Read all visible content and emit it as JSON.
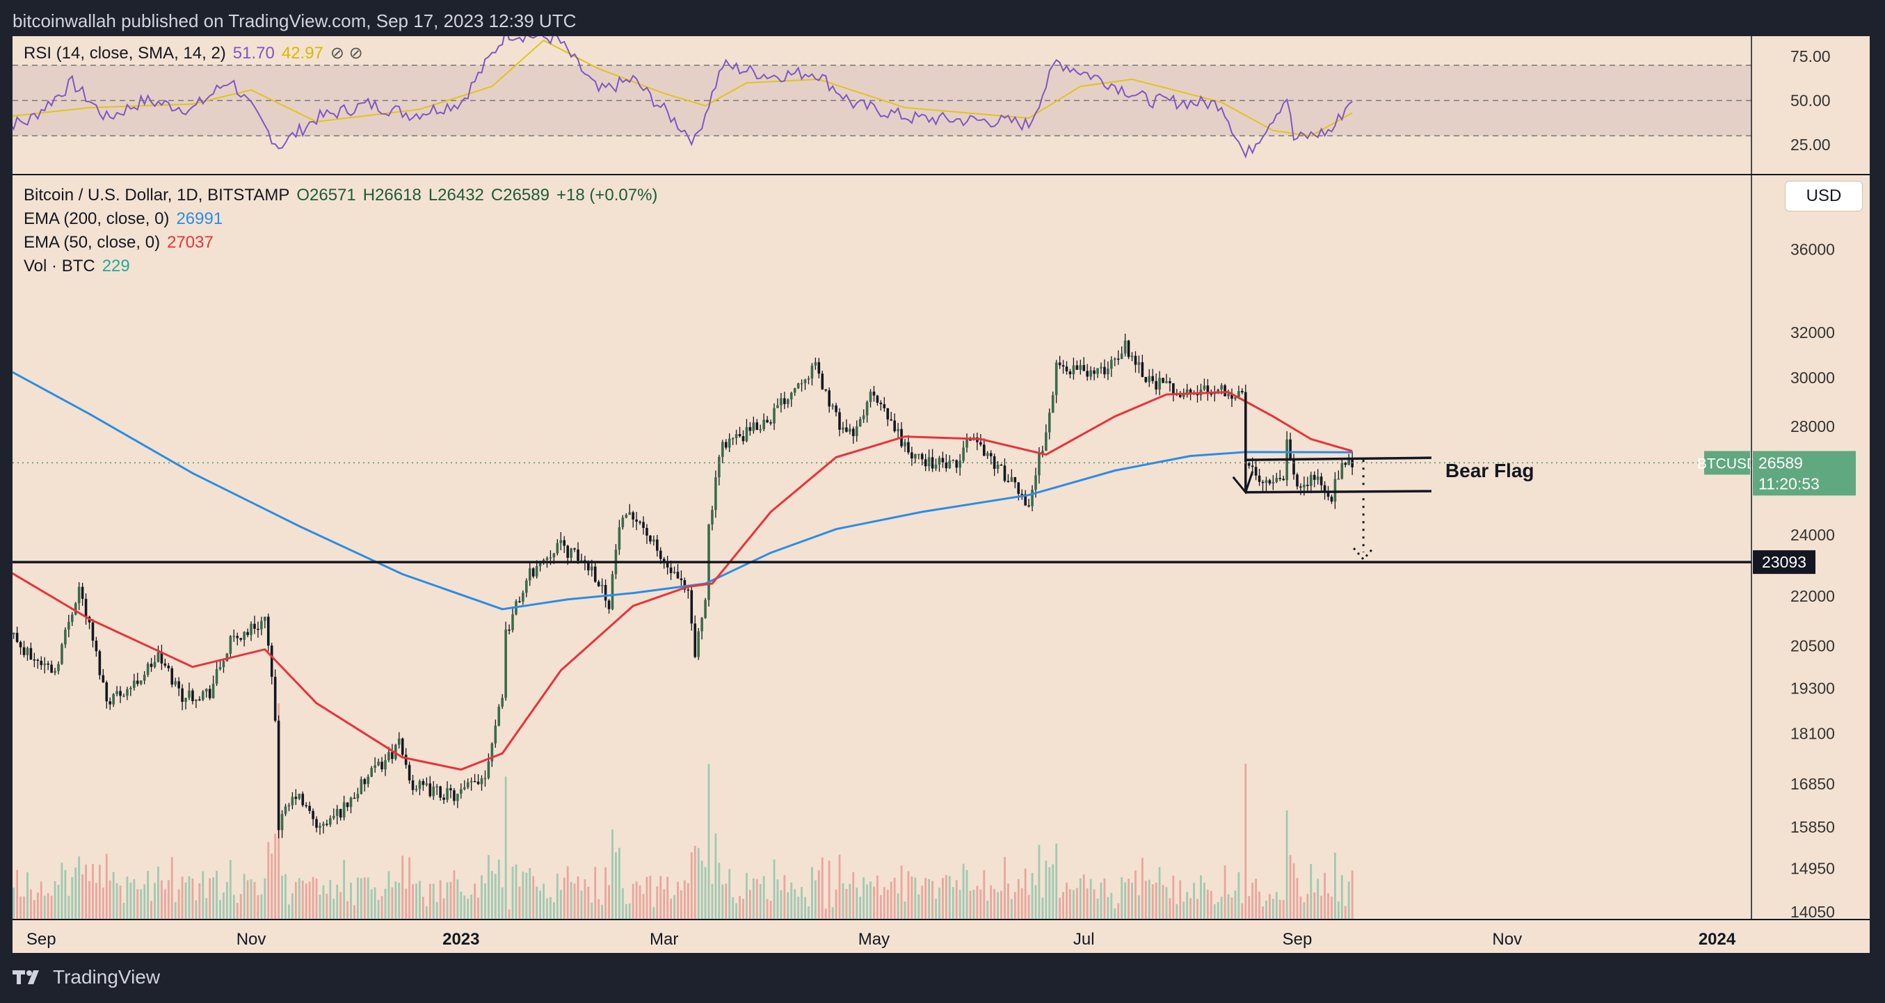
{
  "header": {
    "text": "bitcoinwallah published on TradingView.com, Sep 17, 2023 12:39 UTC"
  },
  "footer": {
    "brand": "TradingView",
    "logo_icon": "tradingview-logo-icon"
  },
  "rsi": {
    "label": "RSI (14, close, SMA, 14, 2)",
    "value": "51.70",
    "sma_value": "42.97",
    "hidden_icons": "⊘ ⊘",
    "ticks": [
      "75.00",
      "50.00",
      "25.00"
    ],
    "tick_values": [
      75,
      50,
      25
    ],
    "bands": [
      30,
      50,
      70
    ],
    "colors": {
      "rsi": "#7e57c2",
      "sma": "#e0c41a",
      "band_fill": "#e5d0c8"
    }
  },
  "legend": {
    "symbol": "Bitcoin / U.S. Dollar, 1D, BITSTAMP",
    "open": "O26571",
    "high": "H26618",
    "low": "L26432",
    "close": "C26589",
    "change": "+18 (+0.07%)",
    "ema200": {
      "label": "EMA (200, close, 0)",
      "value": "26991",
      "color": "#2b8ce6"
    },
    "ema50": {
      "label": "EMA (50, close, 0)",
      "value": "27037",
      "color": "#e8323c"
    },
    "vol": {
      "label": "Vol · BTC",
      "value": "229",
      "color": "#26a69a"
    }
  },
  "currency_button": "USD",
  "chart_data": {
    "type": "candlestick",
    "title": "Bitcoin / U.S. Dollar, 1D, BITSTAMP",
    "x_labels": [
      "Sep",
      "Nov",
      "2023",
      "Mar",
      "May",
      "Jul",
      "Sep",
      "Nov",
      "2024"
    ],
    "x_label_dates": [
      "2022-09-01",
      "2022-11-01",
      "2023-01-01",
      "2023-03-01",
      "2023-05-01",
      "2023-07-01",
      "2023-09-01",
      "2023-11-01",
      "2024-01-01"
    ],
    "x_range": [
      "2022-08-18",
      "2024-02-18"
    ],
    "y_axis_ticks": [
      36000,
      32000,
      30000,
      28000,
      24000,
      22000,
      20500,
      19300,
      18100,
      16850,
      15850,
      14950,
      14050
    ],
    "y_scale": "log",
    "y_range": [
      13900,
      40000
    ],
    "last_price": {
      "label": "BTCUSD",
      "value": 26589,
      "countdown": "11:20:53",
      "color": "#60a880"
    },
    "horizontal_line": {
      "value": 23093,
      "label": "23093"
    },
    "annotation": {
      "text": "Bear Flag",
      "flag_top": 26700,
      "flag_bottom": 25500,
      "pole_top": 29400,
      "target": 23093
    },
    "price_path": [
      [
        "2022-08-18",
        23300
      ],
      [
        "2022-08-20",
        21500
      ],
      [
        "2022-08-27",
        20300
      ],
      [
        "2022-09-05",
        19800
      ],
      [
        "2022-09-12",
        22300
      ],
      [
        "2022-09-20",
        19000
      ],
      [
        "2022-09-28",
        19400
      ],
      [
        "2022-10-05",
        20200
      ],
      [
        "2022-10-12",
        19100
      ],
      [
        "2022-10-20",
        19200
      ],
      [
        "2022-10-26",
        20600
      ],
      [
        "2022-11-05",
        21300
      ],
      [
        "2022-11-08",
        18500
      ],
      [
        "2022-11-09",
        15900
      ],
      [
        "2022-11-14",
        16600
      ],
      [
        "2022-11-21",
        15800
      ],
      [
        "2022-11-28",
        16300
      ],
      [
        "2022-12-05",
        17000
      ],
      [
        "2022-12-14",
        17800
      ],
      [
        "2022-12-18",
        16800
      ],
      [
        "2022-12-31",
        16550
      ],
      [
        "2023-01-08",
        17100
      ],
      [
        "2023-01-13",
        19200
      ],
      [
        "2023-01-14",
        20900
      ],
      [
        "2023-01-21",
        22700
      ],
      [
        "2023-01-29",
        23700
      ],
      [
        "2023-02-08",
        22900
      ],
      [
        "2023-02-13",
        21800
      ],
      [
        "2023-02-16",
        24300
      ],
      [
        "2023-02-21",
        24700
      ],
      [
        "2023-02-28",
        23200
      ],
      [
        "2023-03-08",
        22000
      ],
      [
        "2023-03-10",
        20200
      ],
      [
        "2023-03-13",
        22100
      ],
      [
        "2023-03-14",
        24200
      ],
      [
        "2023-03-18",
        27400
      ],
      [
        "2023-03-24",
        27600
      ],
      [
        "2023-04-01",
        28400
      ],
      [
        "2023-04-11",
        30200
      ],
      [
        "2023-04-14",
        30400
      ],
      [
        "2023-04-20",
        28300
      ],
      [
        "2023-04-25",
        27500
      ],
      [
        "2023-04-30",
        29300
      ],
      [
        "2023-05-08",
        27700
      ],
      [
        "2023-05-12",
        26800
      ],
      [
        "2023-05-25",
        26400
      ],
      [
        "2023-05-29",
        27700
      ],
      [
        "2023-06-10",
        25800
      ],
      [
        "2023-06-15",
        25100
      ],
      [
        "2023-06-21",
        28400
      ],
      [
        "2023-06-23",
        30500
      ],
      [
        "2023-07-06",
        30200
      ],
      [
        "2023-07-13",
        31400
      ],
      [
        "2023-07-20",
        29900
      ],
      [
        "2023-07-31",
        29300
      ],
      [
        "2023-08-09",
        29600
      ],
      [
        "2023-08-16",
        29200
      ],
      [
        "2023-08-17",
        26600
      ],
      [
        "2023-08-22",
        26000
      ],
      [
        "2023-08-28",
        26100
      ],
      [
        "2023-08-29",
        27700
      ],
      [
        "2023-08-31",
        25900
      ],
      [
        "2023-09-07",
        26000
      ],
      [
        "2023-09-11",
        25100
      ],
      [
        "2023-09-12",
        25800
      ],
      [
        "2023-09-15",
        26600
      ],
      [
        "2023-09-17",
        26589
      ]
    ],
    "ema200_path": [
      [
        "2022-08-18",
        30700
      ],
      [
        "2022-09-15",
        28500
      ],
      [
        "2022-10-15",
        26200
      ],
      [
        "2022-11-15",
        24300
      ],
      [
        "2022-12-15",
        22700
      ],
      [
        "2023-01-13",
        21600
      ],
      [
        "2023-02-01",
        21900
      ],
      [
        "2023-02-20",
        22100
      ],
      [
        "2023-03-13",
        22400
      ],
      [
        "2023-04-01",
        23400
      ],
      [
        "2023-04-20",
        24200
      ],
      [
        "2023-05-15",
        24800
      ],
      [
        "2023-06-15",
        25400
      ],
      [
        "2023-07-10",
        26300
      ],
      [
        "2023-08-01",
        26850
      ],
      [
        "2023-08-17",
        27000
      ],
      [
        "2023-09-17",
        26991
      ]
    ],
    "ema50_path": [
      [
        "2022-08-18",
        23100
      ],
      [
        "2022-09-15",
        21300
      ],
      [
        "2022-10-15",
        19900
      ],
      [
        "2022-11-05",
        20400
      ],
      [
        "2022-11-20",
        18900
      ],
      [
        "2022-12-15",
        17500
      ],
      [
        "2023-01-01",
        17200
      ],
      [
        "2023-01-13",
        17600
      ],
      [
        "2023-01-30",
        19800
      ],
      [
        "2023-02-20",
        21700
      ],
      [
        "2023-03-08",
        22300
      ],
      [
        "2023-03-15",
        22400
      ],
      [
        "2023-04-01",
        24800
      ],
      [
        "2023-04-20",
        26800
      ],
      [
        "2023-05-10",
        27600
      ],
      [
        "2023-06-01",
        27500
      ],
      [
        "2023-06-20",
        26900
      ],
      [
        "2023-07-10",
        28400
      ],
      [
        "2023-07-25",
        29300
      ],
      [
        "2023-08-12",
        29400
      ],
      [
        "2023-08-25",
        28400
      ],
      [
        "2023-09-05",
        27500
      ],
      [
        "2023-09-17",
        27037
      ]
    ],
    "rsi_path": [
      [
        "2022-08-18",
        36
      ],
      [
        "2022-08-28",
        38
      ],
      [
        "2022-09-10",
        60
      ],
      [
        "2022-09-20",
        40
      ],
      [
        "2022-10-01",
        50
      ],
      [
        "2022-10-15",
        45
      ],
      [
        "2022-10-26",
        62
      ],
      [
        "2022-11-09",
        24
      ],
      [
        "2022-11-20",
        40
      ],
      [
        "2022-12-05",
        48
      ],
      [
        "2022-12-18",
        42
      ],
      [
        "2023-01-01",
        49
      ],
      [
        "2023-01-14",
        88
      ],
      [
        "2023-01-29",
        85
      ],
      [
        "2023-02-10",
        55
      ],
      [
        "2023-02-20",
        62
      ],
      [
        "2023-03-10",
        27
      ],
      [
        "2023-03-18",
        70
      ],
      [
        "2023-04-01",
        64
      ],
      [
        "2023-04-14",
        66
      ],
      [
        "2023-04-25",
        48
      ],
      [
        "2023-05-12",
        40
      ],
      [
        "2023-06-10",
        38
      ],
      [
        "2023-06-15",
        36
      ],
      [
        "2023-06-23",
        72
      ],
      [
        "2023-07-06",
        62
      ],
      [
        "2023-07-20",
        50
      ],
      [
        "2023-08-10",
        48
      ],
      [
        "2023-08-17",
        18
      ],
      [
        "2023-08-29",
        52
      ],
      [
        "2023-08-31",
        28
      ],
      [
        "2023-09-11",
        33
      ],
      [
        "2023-09-17",
        51.7
      ]
    ],
    "rsi_sma_path": [
      [
        "2022-08-18",
        40
      ],
      [
        "2022-09-15",
        46
      ],
      [
        "2022-10-15",
        48
      ],
      [
        "2022-11-01",
        56
      ],
      [
        "2022-11-20",
        38
      ],
      [
        "2022-12-20",
        45
      ],
      [
        "2023-01-10",
        58
      ],
      [
        "2023-01-25",
        84
      ],
      [
        "2023-02-10",
        68
      ],
      [
        "2023-03-01",
        54
      ],
      [
        "2023-03-13",
        47
      ],
      [
        "2023-03-25",
        60
      ],
      [
        "2023-04-15",
        62
      ],
      [
        "2023-05-10",
        46
      ],
      [
        "2023-06-15",
        40
      ],
      [
        "2023-06-30",
        58
      ],
      [
        "2023-07-15",
        62
      ],
      [
        "2023-08-10",
        49
      ],
      [
        "2023-08-25",
        33
      ],
      [
        "2023-09-05",
        30
      ],
      [
        "2023-09-17",
        42.97
      ]
    ]
  }
}
